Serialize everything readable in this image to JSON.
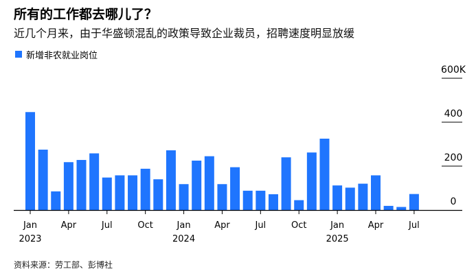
{
  "title": "所有的工作都去哪儿了？",
  "subtitle": "近几个月来，由于华盛顿混乱的政策导致企业裁员，招聘速度明显放缓",
  "source": "资料来源：劳工部、彭博社",
  "colors": {
    "bar": "#1f75fe",
    "axis": "#000000",
    "grid": "#000000"
  },
  "chart_data": {
    "type": "bar",
    "legend": [
      "新增非农就业岗位"
    ],
    "legend_position": "top-left",
    "grid": true,
    "ylim": [
      0,
      600
    ],
    "yticks": [
      {
        "value": 0,
        "label": "0"
      },
      {
        "value": 200,
        "label": "200"
      },
      {
        "value": 400,
        "label": "400"
      },
      {
        "value": 600,
        "label": "600K"
      }
    ],
    "categories": [
      "2023-01",
      "2023-02",
      "2023-03",
      "2023-04",
      "2023-05",
      "2023-06",
      "2023-07",
      "2023-08",
      "2023-09",
      "2023-10",
      "2023-11",
      "2023-12",
      "2024-01",
      "2024-02",
      "2024-03",
      "2024-04",
      "2024-05",
      "2024-06",
      "2024-07",
      "2024-08",
      "2024-09",
      "2024-10",
      "2024-11",
      "2024-12",
      "2025-01",
      "2025-02",
      "2025-03",
      "2025-04",
      "2025-05",
      "2025-06",
      "2025-07"
    ],
    "series": [
      {
        "name": "新增非农就业岗位",
        "values": [
          446,
          275,
          85,
          218,
          228,
          258,
          148,
          158,
          158,
          188,
          140,
          272,
          118,
          225,
          245,
          118,
          195,
          88,
          88,
          72,
          240,
          45,
          262,
          325,
          112,
          102,
          120,
          158,
          19,
          14,
          73
        ]
      }
    ],
    "xticks": [
      {
        "index": 0,
        "label": "Jan",
        "year": "2023"
      },
      {
        "index": 3,
        "label": "Apr"
      },
      {
        "index": 6,
        "label": "Jul"
      },
      {
        "index": 9,
        "label": "Oct"
      },
      {
        "index": 12,
        "label": "Jan",
        "year": "2024"
      },
      {
        "index": 15,
        "label": "Apr"
      },
      {
        "index": 18,
        "label": "Jul"
      },
      {
        "index": 21,
        "label": "Oct"
      },
      {
        "index": 24,
        "label": "Jan",
        "year": "2025"
      },
      {
        "index": 27,
        "label": "Apr"
      },
      {
        "index": 30,
        "label": "Jul"
      }
    ]
  }
}
